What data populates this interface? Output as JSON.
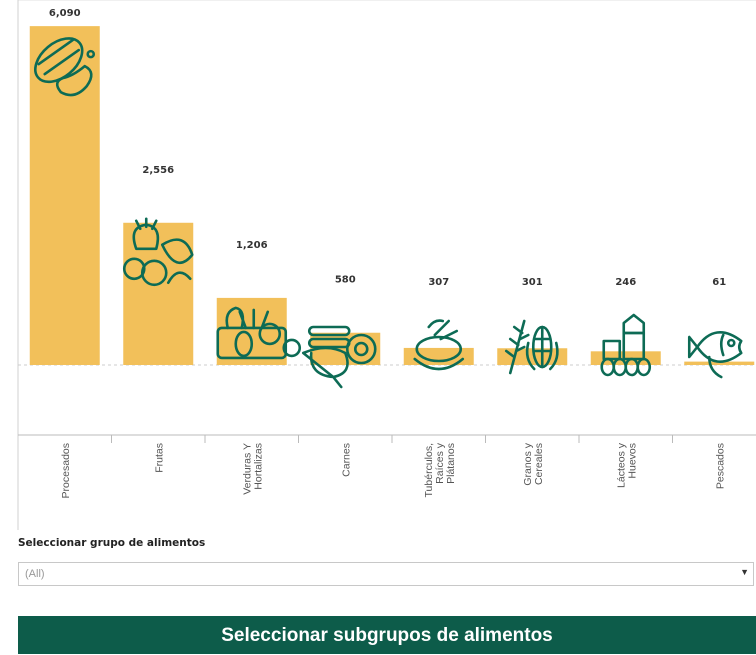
{
  "chart_data": {
    "type": "bar",
    "categories": [
      "Procesados",
      "Frutas",
      "Verduras Y Hortalizas",
      "Carnes",
      "Tubérculos, Raíces y Plátanos",
      "Granos y Cereales",
      "Lácteos y Huevos",
      "Pescados"
    ],
    "category_lines": [
      [
        "Procesados"
      ],
      [
        "Frutas"
      ],
      [
        "Verduras Y",
        "Hortalizas"
      ],
      [
        "Carnes"
      ],
      [
        "Tubérculos,",
        "Raíces y",
        "Plátanos"
      ],
      [
        "Granos y",
        "Cereales"
      ],
      [
        "Lácteos y",
        "Huevos"
      ],
      [
        "Pescados"
      ]
    ],
    "values": [
      6090,
      2556,
      1206,
      580,
      307,
      301,
      246,
      61
    ],
    "value_labels": [
      "6,090",
      "2,556",
      "1,206",
      "580",
      "307",
      "301",
      "246",
      "61"
    ],
    "icons": [
      "sausage-icon",
      "fruit-basket-icon",
      "vegetables-icon",
      "meat-icon",
      "tuber-icon",
      "grain-corn-icon",
      "dairy-eggs-icon",
      "fish-icon"
    ],
    "bar_color": "#f2c05a",
    "icon_color": "#0d6b55",
    "ylim": [
      -2200,
      6200
    ],
    "grid": false
  },
  "filter": {
    "title": "Seleccionar grupo de alimentos",
    "value": "(All)"
  },
  "subgroup_button": {
    "label": "Seleccionar subgrupos de alimentos"
  },
  "colors": {
    "button_bg": "#0d5c4a"
  }
}
